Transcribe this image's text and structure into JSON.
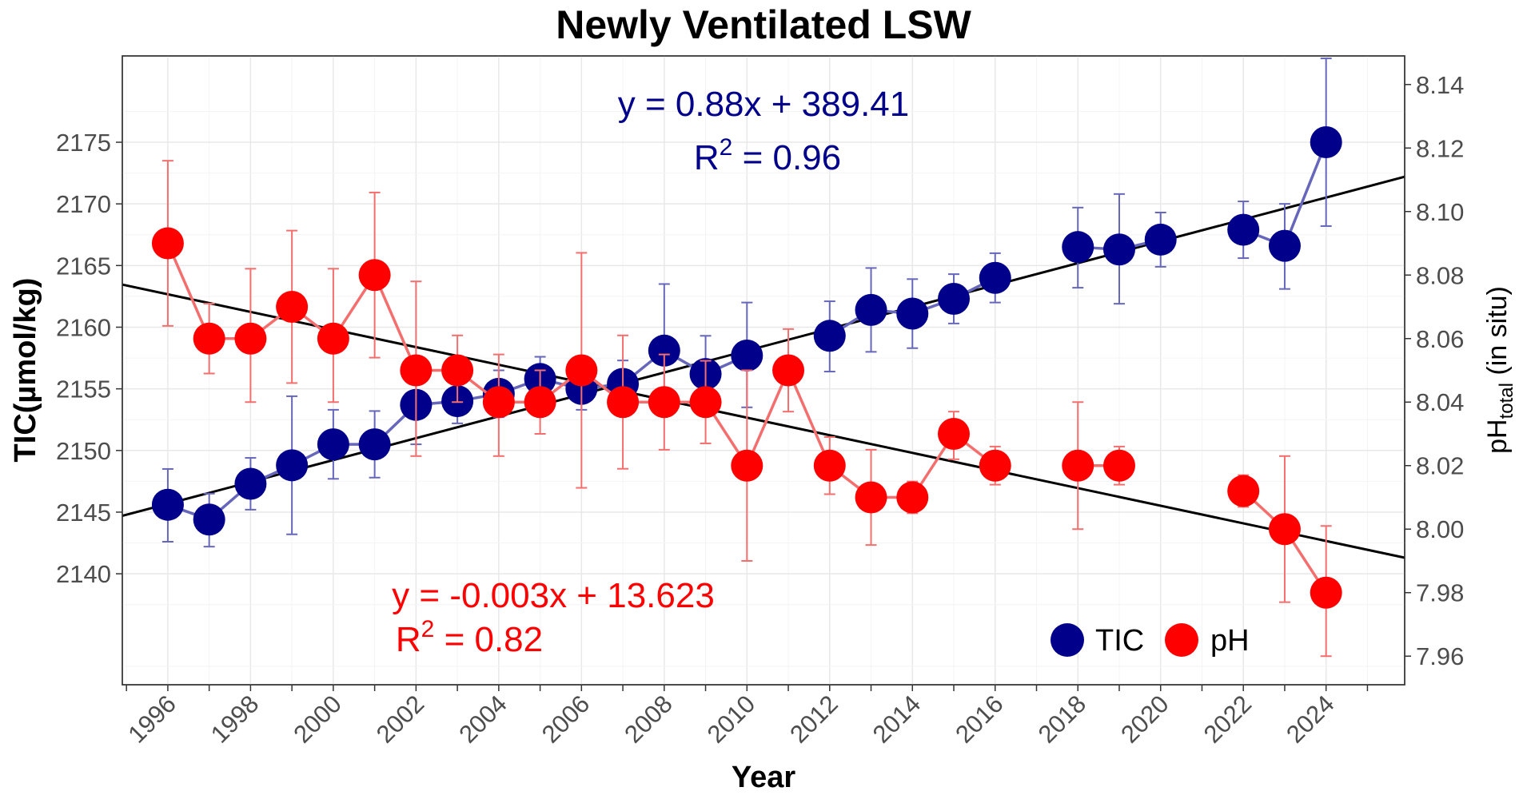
{
  "chart_data": {
    "type": "line",
    "title": "Newly Ventilated LSW",
    "xlabel": "Year",
    "ylabel": "TIC(µmol/kg)",
    "y2label": "pH",
    "y2label_sub": "total",
    "y2label_suffix": " (in situ)",
    "xlim": [
      1994.9,
      2025.9
    ],
    "ylim": [
      2131,
      2182
    ],
    "y2lim": [
      7.951,
      8.149
    ],
    "x_ticks": [
      1996,
      1998,
      2000,
      2002,
      2004,
      2006,
      2008,
      2010,
      2012,
      2014,
      2016,
      2018,
      2020,
      2022,
      2024
    ],
    "y_ticks": [
      2140,
      2145,
      2150,
      2155,
      2160,
      2165,
      2170,
      2175
    ],
    "y2_ticks": [
      7.96,
      7.98,
      8.0,
      8.02,
      8.04,
      8.06,
      8.08,
      8.1,
      8.12,
      8.14
    ],
    "grid": true,
    "legend_position": "bottom-right",
    "series": [
      {
        "name": "TIC",
        "axis": "left",
        "color": "#00008B",
        "line_color": "#6666BB",
        "points": [
          {
            "x": 1996,
            "y": 2145.6,
            "lo": 2142.6,
            "hi": 2148.5
          },
          {
            "x": 1997,
            "y": 2144.4,
            "lo": 2142.2,
            "hi": 2146.5
          },
          {
            "x": 1998,
            "y": 2147.3,
            "lo": 2145.2,
            "hi": 2149.4
          },
          {
            "x": 1999,
            "y": 2148.8,
            "lo": 2143.2,
            "hi": 2154.4
          },
          {
            "x": 2000,
            "y": 2150.5,
            "lo": 2147.7,
            "hi": 2153.3
          },
          {
            "x": 2001,
            "y": 2150.5,
            "lo": 2147.8,
            "hi": 2153.2
          },
          {
            "x": 2002,
            "y": 2153.7,
            "lo": 2150.5,
            "hi": 2156.6
          },
          {
            "x": 2003,
            "y": 2154.0,
            "lo": 2152.2,
            "hi": 2155.9
          },
          {
            "x": 2004,
            "y": 2154.6,
            "lo": 2152.7,
            "hi": 2156.5
          },
          {
            "x": 2005,
            "y": 2155.8,
            "lo": 2153.8,
            "hi": 2157.6
          },
          {
            "x": 2006,
            "y": 2155.0,
            "lo": 2153.3,
            "hi": 2156.7
          },
          {
            "x": 2007,
            "y": 2155.4,
            "lo": 2153.4,
            "hi": 2157.3
          },
          {
            "x": 2008,
            "y": 2158.1,
            "lo": 2152.8,
            "hi": 2163.5
          },
          {
            "x": 2009,
            "y": 2156.2,
            "lo": 2153.1,
            "hi": 2159.3
          },
          {
            "x": 2010,
            "y": 2157.7,
            "lo": 2153.5,
            "hi": 2162.0
          },
          {
            "x": 2012,
            "y": 2159.3,
            "lo": 2156.4,
            "hi": 2162.1
          },
          {
            "x": 2013,
            "y": 2161.4,
            "lo": 2158.0,
            "hi": 2164.8
          },
          {
            "x": 2014,
            "y": 2161.1,
            "lo": 2158.3,
            "hi": 2163.9
          },
          {
            "x": 2015,
            "y": 2162.3,
            "lo": 2160.3,
            "hi": 2164.3
          },
          {
            "x": 2016,
            "y": 2164.0,
            "lo": 2162.0,
            "hi": 2166.0
          },
          {
            "x": 2018,
            "y": 2166.5,
            "lo": 2163.2,
            "hi": 2169.7
          },
          {
            "x": 2019,
            "y": 2166.3,
            "lo": 2161.9,
            "hi": 2170.8
          },
          {
            "x": 2020,
            "y": 2167.1,
            "lo": 2164.9,
            "hi": 2169.3
          },
          {
            "x": 2022,
            "y": 2167.9,
            "lo": 2165.6,
            "hi": 2170.2
          },
          {
            "x": 2023,
            "y": 2166.6,
            "lo": 2163.1,
            "hi": 2170.0
          },
          {
            "x": 2024,
            "y": 2175.0,
            "lo": 2168.2,
            "hi": 2181.8
          }
        ]
      },
      {
        "name": "pH",
        "axis": "right",
        "color": "#FF0000",
        "line_color": "#F46E6E",
        "points": [
          {
            "x": 1996,
            "y": 8.09,
            "lo": 8.064,
            "hi": 8.116
          },
          {
            "x": 1997,
            "y": 8.06,
            "lo": 8.049,
            "hi": 8.071
          },
          {
            "x": 1998,
            "y": 8.06,
            "lo": 8.04,
            "hi": 8.082
          },
          {
            "x": 1999,
            "y": 8.07,
            "lo": 8.046,
            "hi": 8.094
          },
          {
            "x": 2000,
            "y": 8.06,
            "lo": 8.04,
            "hi": 8.082
          },
          {
            "x": 2001,
            "y": 8.08,
            "lo": 8.054,
            "hi": 8.106
          },
          {
            "x": 2002,
            "y": 8.05,
            "lo": 8.023,
            "hi": 8.078
          },
          {
            "x": 2003,
            "y": 8.05,
            "lo": 8.04,
            "hi": 8.061
          },
          {
            "x": 2004,
            "y": 8.04,
            "lo": 8.023,
            "hi": 8.055
          },
          {
            "x": 2005,
            "y": 8.04,
            "lo": 8.03,
            "hi": 8.05
          },
          {
            "x": 2006,
            "y": 8.05,
            "lo": 8.013,
            "hi": 8.087
          },
          {
            "x": 2007,
            "y": 8.04,
            "lo": 8.019,
            "hi": 8.061
          },
          {
            "x": 2008,
            "y": 8.04,
            "lo": 8.025,
            "hi": 8.055
          },
          {
            "x": 2009,
            "y": 8.04,
            "lo": 8.027,
            "hi": 8.053
          },
          {
            "x": 2010,
            "y": 8.02,
            "lo": 7.99,
            "hi": 8.05
          },
          {
            "x": 2011,
            "y": 8.05,
            "lo": 8.037,
            "hi": 8.063
          },
          {
            "x": 2012,
            "y": 8.02,
            "lo": 8.011,
            "hi": 8.029
          },
          {
            "x": 2013,
            "y": 8.01,
            "lo": 7.995,
            "hi": 8.025
          },
          {
            "x": 2014,
            "y": 8.01,
            "lo": 8.005,
            "hi": 8.015
          },
          {
            "x": 2015,
            "y": 8.03,
            "lo": 8.022,
            "hi": 8.037
          },
          {
            "x": 2016,
            "y": 8.02,
            "lo": 8.014,
            "hi": 8.026
          },
          {
            "x": 2018,
            "y": 8.02,
            "lo": 8.0,
            "hi": 8.04
          },
          {
            "x": 2019,
            "y": 8.02,
            "lo": 8.014,
            "hi": 8.026
          },
          {
            "x": 2022,
            "y": 8.012,
            "lo": 8.007,
            "hi": 8.017
          },
          {
            "x": 2023,
            "y": 8.0,
            "lo": 7.977,
            "hi": 8.023
          },
          {
            "x": 2024,
            "y": 7.98,
            "lo": 7.96,
            "hi": 8.001
          }
        ]
      }
    ],
    "trendlines": [
      {
        "series": "TIC",
        "axis": "left",
        "x": [
          1994.9,
          2025.9
        ],
        "y": [
          2144.7,
          2172.2
        ]
      },
      {
        "series": "pH",
        "axis": "right",
        "x": [
          1994.9,
          2025.9
        ],
        "y": [
          8.077,
          7.991
        ]
      }
    ],
    "annotations": {
      "tic_equation": "y = 0.88x + 389.41",
      "tic_r2_value": " = 0.96",
      "ph_equation": "y = -0.003x + 13.623",
      "ph_r2_value": " = 0.82",
      "r2_prefix": "R",
      "r2_sup": "2"
    }
  }
}
